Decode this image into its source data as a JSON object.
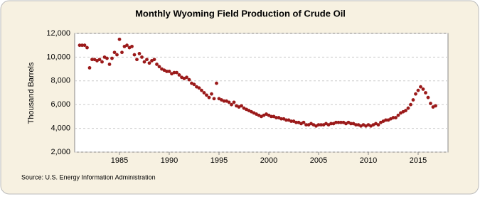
{
  "chart_data": {
    "type": "scatter",
    "title": "Monthly Wyoming Field Production of Crude Oil",
    "y_label": "Thousand Barrels",
    "source": "Source: U.S. Energy Information Administration",
    "color": "#9b1a1a",
    "grid": true,
    "xlim": [
      1980.5,
      2018
    ],
    "ylim": [
      2000,
      12000
    ],
    "xticks": [
      1985,
      1990,
      1995,
      2000,
      2005,
      2010,
      2015
    ],
    "yticks": [
      {
        "value": 2000,
        "label": "2,000"
      },
      {
        "value": 4000,
        "label": "4,000"
      },
      {
        "value": 6000,
        "label": "6,000"
      },
      {
        "value": 8000,
        "label": "8,000"
      },
      {
        "value": 10000,
        "label": "10,000"
      },
      {
        "value": 12000,
        "label": "12,000"
      }
    ],
    "x": [
      1981,
      1981.25,
      1981.5,
      1981.75,
      1982,
      1982.25,
      1982.5,
      1982.75,
      1983,
      1983.25,
      1983.5,
      1983.75,
      1984,
      1984.25,
      1984.5,
      1984.75,
      1985,
      1985.25,
      1985.5,
      1985.75,
      1986,
      1986.25,
      1986.5,
      1986.75,
      1987,
      1987.25,
      1987.5,
      1987.75,
      1988,
      1988.25,
      1988.5,
      1988.75,
      1989,
      1989.25,
      1989.5,
      1989.75,
      1990,
      1990.25,
      1990.5,
      1990.75,
      1991,
      1991.25,
      1991.5,
      1991.75,
      1992,
      1992.25,
      1992.5,
      1992.75,
      1993,
      1993.25,
      1993.5,
      1993.75,
      1994,
      1994.25,
      1994.5,
      1994.75,
      1995,
      1995.25,
      1995.5,
      1995.75,
      1996,
      1996.25,
      1996.5,
      1996.75,
      1997,
      1997.25,
      1997.5,
      1997.75,
      1998,
      1998.25,
      1998.5,
      1998.75,
      1999,
      1999.25,
      1999.5,
      1999.75,
      2000,
      2000.25,
      2000.5,
      2000.75,
      2001,
      2001.25,
      2001.5,
      2001.75,
      2002,
      2002.25,
      2002.5,
      2002.75,
      2003,
      2003.25,
      2003.5,
      2003.75,
      2004,
      2004.25,
      2004.5,
      2004.75,
      2005,
      2005.25,
      2005.5,
      2005.75,
      2006,
      2006.25,
      2006.5,
      2006.75,
      2007,
      2007.25,
      2007.5,
      2007.75,
      2008,
      2008.25,
      2008.5,
      2008.75,
      2009,
      2009.25,
      2009.5,
      2009.75,
      2010,
      2010.25,
      2010.5,
      2010.75,
      2011,
      2011.25,
      2011.5,
      2011.75,
      2012,
      2012.25,
      2012.5,
      2012.75,
      2013,
      2013.25,
      2013.5,
      2013.75,
      2014,
      2014.25,
      2014.5,
      2014.75,
      2015,
      2015.25,
      2015.5,
      2015.75,
      2016,
      2016.25,
      2016.5,
      2016.75
    ],
    "values": [
      11000,
      11000,
      11000,
      10800,
      9100,
      9800,
      9800,
      9700,
      9800,
      9600,
      10000,
      9900,
      9400,
      9900,
      10400,
      10200,
      11500,
      10400,
      10900,
      11000,
      10800,
      10900,
      10200,
      9800,
      10300,
      10000,
      9600,
      9800,
      9500,
      9700,
      9800,
      9400,
      9200,
      9000,
      8900,
      8800,
      8800,
      8600,
      8700,
      8700,
      8500,
      8300,
      8200,
      8300,
      8100,
      7800,
      7700,
      7500,
      7400,
      7200,
      7000,
      6800,
      6600,
      6900,
      6500,
      7800,
      6500,
      6400,
      6300,
      6300,
      6200,
      6000,
      6200,
      5900,
      5800,
      5900,
      5700,
      5600,
      5500,
      5400,
      5300,
      5200,
      5100,
      5000,
      5100,
      5200,
      5100,
      5000,
      5000,
      4900,
      4900,
      4800,
      4800,
      4700,
      4700,
      4600,
      4600,
      4500,
      4500,
      4400,
      4500,
      4300,
      4300,
      4400,
      4300,
      4200,
      4300,
      4300,
      4300,
      4400,
      4300,
      4400,
      4400,
      4500,
      4500,
      4500,
      4500,
      4400,
      4500,
      4400,
      4400,
      4300,
      4300,
      4200,
      4300,
      4200,
      4300,
      4200,
      4300,
      4400,
      4300,
      4500,
      4600,
      4700,
      4700,
      4800,
      4900,
      4900,
      5100,
      5300,
      5400,
      5500,
      5700,
      6000,
      6400,
      6900,
      7200,
      7500,
      7300,
      7000,
      6600,
      6100,
      5800,
      5900
    ]
  }
}
